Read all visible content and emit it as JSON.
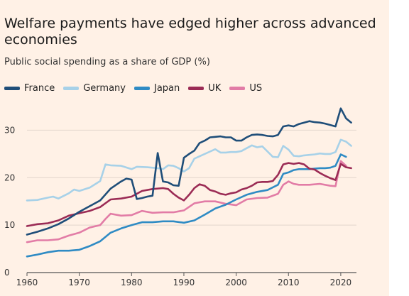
{
  "chart_data": {
    "type": "line",
    "title": "Welfare payments have edged higher across advanced economies",
    "subtitle": "Public social spending as a share of GDP (%)",
    "xlabel": "",
    "ylabel": "",
    "xlim": [
      1960,
      2023
    ],
    "ylim": [
      0,
      35
    ],
    "xticks": [
      1960,
      1970,
      1980,
      1990,
      2000,
      2010,
      2020
    ],
    "yticks": [
      0,
      10,
      20,
      30
    ],
    "grid": "horizontal",
    "legend_position": "top-left",
    "series": [
      {
        "name": "France",
        "color": "#1f4e79",
        "points": [
          [
            1960,
            8
          ],
          [
            1962,
            8.6
          ],
          [
            1964,
            9.3
          ],
          [
            1966,
            10.2
          ],
          [
            1968,
            11.4
          ],
          [
            1970,
            12.8
          ],
          [
            1972,
            14
          ],
          [
            1974,
            15.2
          ],
          [
            1976,
            17.7
          ],
          [
            1978,
            19.2
          ],
          [
            1979,
            19.8
          ],
          [
            1980,
            19.6
          ],
          [
            1981,
            15.5
          ],
          [
            1982,
            15.7
          ],
          [
            1983,
            16
          ],
          [
            1984,
            16.2
          ],
          [
            1985,
            25.2
          ],
          [
            1986,
            19.2
          ],
          [
            1987,
            19
          ],
          [
            1988,
            18.4
          ],
          [
            1989,
            18.3
          ],
          [
            1990,
            24.2
          ],
          [
            1991,
            25
          ],
          [
            1992,
            25.7
          ],
          [
            1993,
            27.3
          ],
          [
            1994,
            27.8
          ],
          [
            1995,
            28.5
          ],
          [
            1996,
            28.6
          ],
          [
            1997,
            28.7
          ],
          [
            1998,
            28.5
          ],
          [
            1999,
            28.5
          ],
          [
            2000,
            27.8
          ],
          [
            2001,
            27.8
          ],
          [
            2002,
            28.5
          ],
          [
            2003,
            29
          ],
          [
            2004,
            29.1
          ],
          [
            2005,
            29
          ],
          [
            2006,
            28.8
          ],
          [
            2007,
            28.7
          ],
          [
            2008,
            29
          ],
          [
            2009,
            30.8
          ],
          [
            2010,
            31
          ],
          [
            2011,
            30.8
          ],
          [
            2012,
            31.3
          ],
          [
            2013,
            31.6
          ],
          [
            2014,
            31.9
          ],
          [
            2015,
            31.7
          ],
          [
            2016,
            31.6
          ],
          [
            2017,
            31.4
          ],
          [
            2018,
            31.1
          ],
          [
            2019,
            30.8
          ],
          [
            2020,
            34.6
          ],
          [
            2021,
            32.5
          ],
          [
            2022,
            31.6
          ]
        ]
      },
      {
        "name": "Germany",
        "color": "#a7d1e8",
        "points": [
          [
            1960,
            15.2
          ],
          [
            1962,
            15.3
          ],
          [
            1964,
            15.8
          ],
          [
            1965,
            16
          ],
          [
            1966,
            15.6
          ],
          [
            1968,
            16.7
          ],
          [
            1969,
            17.5
          ],
          [
            1970,
            17.2
          ],
          [
            1972,
            17.9
          ],
          [
            1974,
            19.3
          ],
          [
            1975,
            22.8
          ],
          [
            1976,
            22.6
          ],
          [
            1978,
            22.5
          ],
          [
            1980,
            21.8
          ],
          [
            1981,
            22.3
          ],
          [
            1983,
            22.2
          ],
          [
            1985,
            22
          ],
          [
            1986,
            21.8
          ],
          [
            1987,
            22.6
          ],
          [
            1988,
            22.5
          ],
          [
            1989,
            22
          ],
          [
            1990,
            21.3
          ],
          [
            1991,
            22
          ],
          [
            1992,
            24
          ],
          [
            1993,
            24.5
          ],
          [
            1995,
            25.5
          ],
          [
            1996,
            26
          ],
          [
            1997,
            25.3
          ],
          [
            1998,
            25.3
          ],
          [
            1999,
            25.4
          ],
          [
            2000,
            25.4
          ],
          [
            2001,
            25.6
          ],
          [
            2002,
            26.2
          ],
          [
            2003,
            26.8
          ],
          [
            2004,
            26.4
          ],
          [
            2005,
            26.6
          ],
          [
            2006,
            25.5
          ],
          [
            2007,
            24.4
          ],
          [
            2008,
            24.3
          ],
          [
            2009,
            26.7
          ],
          [
            2010,
            25.9
          ],
          [
            2011,
            24.6
          ],
          [
            2012,
            24.5
          ],
          [
            2013,
            24.7
          ],
          [
            2014,
            24.8
          ],
          [
            2015,
            24.9
          ],
          [
            2016,
            25.1
          ],
          [
            2017,
            25
          ],
          [
            2018,
            25
          ],
          [
            2019,
            25.4
          ],
          [
            2020,
            28
          ],
          [
            2021,
            27.6
          ],
          [
            2022,
            26.7
          ]
        ]
      },
      {
        "name": "Japan",
        "color": "#2f8bc4",
        "points": [
          [
            1960,
            3.4
          ],
          [
            1962,
            3.8
          ],
          [
            1964,
            4.3
          ],
          [
            1966,
            4.6
          ],
          [
            1968,
            4.6
          ],
          [
            1970,
            4.8
          ],
          [
            1972,
            5.6
          ],
          [
            1974,
            6.6
          ],
          [
            1976,
            8.4
          ],
          [
            1978,
            9.3
          ],
          [
            1980,
            10
          ],
          [
            1982,
            10.6
          ],
          [
            1984,
            10.6
          ],
          [
            1986,
            10.8
          ],
          [
            1988,
            10.8
          ],
          [
            1990,
            10.5
          ],
          [
            1992,
            11
          ],
          [
            1994,
            12.2
          ],
          [
            1996,
            13.5
          ],
          [
            1998,
            14.3
          ],
          [
            2000,
            15.4
          ],
          [
            2002,
            16.4
          ],
          [
            2004,
            17
          ],
          [
            2006,
            17.4
          ],
          [
            2008,
            18.5
          ],
          [
            2009,
            20.8
          ],
          [
            2010,
            21.1
          ],
          [
            2011,
            21.6
          ],
          [
            2012,
            21.8
          ],
          [
            2013,
            21.8
          ],
          [
            2014,
            21.8
          ],
          [
            2015,
            21.9
          ],
          [
            2016,
            22
          ],
          [
            2017,
            22
          ],
          [
            2018,
            22.1
          ],
          [
            2019,
            22.5
          ],
          [
            2020,
            24.9
          ],
          [
            2021,
            24.4
          ]
        ]
      },
      {
        "name": "UK",
        "color": "#9b2b55",
        "points": [
          [
            1960,
            9.8
          ],
          [
            1962,
            10.2
          ],
          [
            1964,
            10.4
          ],
          [
            1966,
            11
          ],
          [
            1968,
            12
          ],
          [
            1970,
            12.5
          ],
          [
            1972,
            13
          ],
          [
            1974,
            13.8
          ],
          [
            1976,
            15.4
          ],
          [
            1978,
            15.6
          ],
          [
            1980,
            16
          ],
          [
            1982,
            17.2
          ],
          [
            1984,
            17.6
          ],
          [
            1986,
            17.8
          ],
          [
            1987,
            17.6
          ],
          [
            1988,
            16.6
          ],
          [
            1989,
            15.8
          ],
          [
            1990,
            15.2
          ],
          [
            1991,
            16.4
          ],
          [
            1992,
            17.8
          ],
          [
            1993,
            18.6
          ],
          [
            1994,
            18.3
          ],
          [
            1995,
            17.4
          ],
          [
            1996,
            17.1
          ],
          [
            1997,
            16.6
          ],
          [
            1998,
            16.4
          ],
          [
            1999,
            16.7
          ],
          [
            2000,
            16.9
          ],
          [
            2001,
            17.5
          ],
          [
            2002,
            17.8
          ],
          [
            2003,
            18.3
          ],
          [
            2004,
            19
          ],
          [
            2005,
            19.1
          ],
          [
            2006,
            19.1
          ],
          [
            2007,
            19.3
          ],
          [
            2008,
            20.6
          ],
          [
            2009,
            22.8
          ],
          [
            2010,
            23.1
          ],
          [
            2011,
            22.9
          ],
          [
            2012,
            23.1
          ],
          [
            2013,
            22.8
          ],
          [
            2014,
            21.9
          ],
          [
            2015,
            21.7
          ],
          [
            2016,
            21
          ],
          [
            2017,
            20.4
          ],
          [
            2018,
            19.9
          ],
          [
            2019,
            19.5
          ],
          [
            2020,
            22.9
          ],
          [
            2021,
            22.2
          ],
          [
            2022,
            22
          ]
        ]
      },
      {
        "name": "US",
        "color": "#e27ca6",
        "points": [
          [
            1960,
            6.4
          ],
          [
            1962,
            6.8
          ],
          [
            1964,
            6.8
          ],
          [
            1966,
            7
          ],
          [
            1968,
            7.8
          ],
          [
            1970,
            8.4
          ],
          [
            1972,
            9.5
          ],
          [
            1974,
            10
          ],
          [
            1975,
            11.3
          ],
          [
            1976,
            12.4
          ],
          [
            1978,
            12
          ],
          [
            1980,
            12.1
          ],
          [
            1982,
            13
          ],
          [
            1984,
            12.6
          ],
          [
            1986,
            12.7
          ],
          [
            1988,
            12.7
          ],
          [
            1990,
            13.1
          ],
          [
            1992,
            14.6
          ],
          [
            1994,
            15
          ],
          [
            1996,
            15
          ],
          [
            1998,
            14.5
          ],
          [
            2000,
            14.2
          ],
          [
            2002,
            15.4
          ],
          [
            2004,
            15.7
          ],
          [
            2006,
            15.8
          ],
          [
            2008,
            16.6
          ],
          [
            2009,
            18.5
          ],
          [
            2010,
            19.2
          ],
          [
            2011,
            18.7
          ],
          [
            2012,
            18.5
          ],
          [
            2014,
            18.5
          ],
          [
            2016,
            18.7
          ],
          [
            2018,
            18.3
          ],
          [
            2019,
            18.2
          ],
          [
            2020,
            23.5
          ],
          [
            2021,
            22.5
          ]
        ]
      }
    ]
  }
}
